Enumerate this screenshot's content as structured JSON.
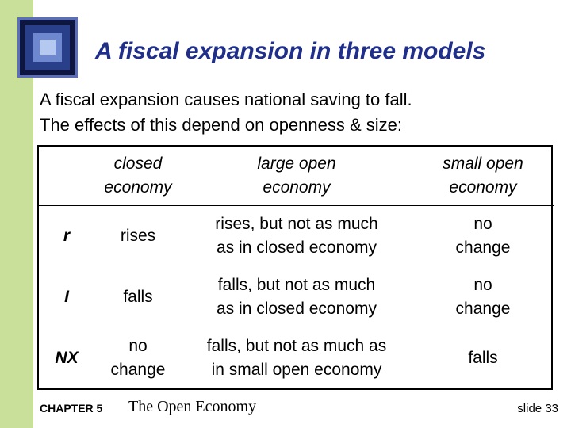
{
  "title": "A fiscal expansion in three models",
  "intro": {
    "line1": "A fiscal expansion causes national saving to fall.",
    "line2": "The effects of this depend on openness & size:"
  },
  "table": {
    "headers": [
      {
        "line1": "closed",
        "line2": "economy"
      },
      {
        "line1": "large open",
        "line2": "economy"
      },
      {
        "line1": "small open",
        "line2": "economy"
      }
    ],
    "rows": [
      {
        "label": "r",
        "closed": [
          "rises"
        ],
        "large": [
          "rises, but not as much",
          "as in closed economy"
        ],
        "small": [
          "no",
          "change"
        ]
      },
      {
        "label": "I",
        "closed": [
          "falls"
        ],
        "large": [
          "falls, but not as much",
          "as in closed economy"
        ],
        "small": [
          "no",
          "change"
        ]
      },
      {
        "label": "NX",
        "closed": [
          "no",
          "change"
        ],
        "large": [
          "falls, but not as much as",
          "in small open economy"
        ],
        "small": [
          "falls"
        ]
      }
    ]
  },
  "footer": {
    "chapter": "CHAPTER 5",
    "book": "The Open Economy",
    "slide": "slide 33"
  },
  "colors": {
    "left_band": "#c8e09a",
    "title": "#1f2f8a",
    "logo": "#2a3f8a"
  }
}
